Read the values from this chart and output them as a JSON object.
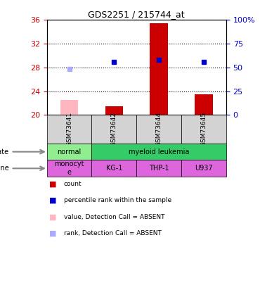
{
  "title": "GDS2251 / 215744_at",
  "samples": [
    "GSM73641",
    "GSM73642",
    "GSM73644",
    "GSM73645"
  ],
  "bar_values": [
    22.5,
    21.5,
    35.5,
    23.5
  ],
  "bar_colors": [
    "#ffb6c1",
    "#cc0000",
    "#cc0000",
    "#cc0000"
  ],
  "rank_values": [
    27.8,
    28.9,
    29.3,
    28.9
  ],
  "rank_colors": [
    "#aaaaff",
    "#0000cc",
    "#0000cc",
    "#0000cc"
  ],
  "ylim_left": [
    20,
    36
  ],
  "ylim_right": [
    0,
    100
  ],
  "yticks_left": [
    20,
    24,
    28,
    32,
    36
  ],
  "yticks_right": [
    0,
    25,
    50,
    75,
    100
  ],
  "ytick_labels_right": [
    "0",
    "25",
    "50",
    "75",
    "100%"
  ],
  "disease_state_groups": [
    {
      "label": "normal",
      "span": [
        0,
        1
      ],
      "color": "#90ee90"
    },
    {
      "label": "myeloid leukemia",
      "span": [
        1,
        4
      ],
      "color": "#33cc66"
    }
  ],
  "cell_line_groups": [
    {
      "label": "monocyt\ne",
      "span": [
        0,
        1
      ],
      "color": "#dd66dd"
    },
    {
      "label": "KG-1",
      "span": [
        1,
        2
      ],
      "color": "#dd66dd"
    },
    {
      "label": "THP-1",
      "span": [
        2,
        3
      ],
      "color": "#dd66dd"
    },
    {
      "label": "U937",
      "span": [
        3,
        4
      ],
      "color": "#dd66dd"
    }
  ],
  "legend_items": [
    {
      "label": "count",
      "color": "#cc0000"
    },
    {
      "label": "percentile rank within the sample",
      "color": "#0000cc"
    },
    {
      "label": "value, Detection Call = ABSENT",
      "color": "#ffb6c1"
    },
    {
      "label": "rank, Detection Call = ABSENT",
      "color": "#aaaaff"
    }
  ],
  "bar_width": 0.4,
  "left_tick_color": "#cc0000",
  "right_tick_color": "#0000cc",
  "sample_box_color": "#d3d3d3"
}
